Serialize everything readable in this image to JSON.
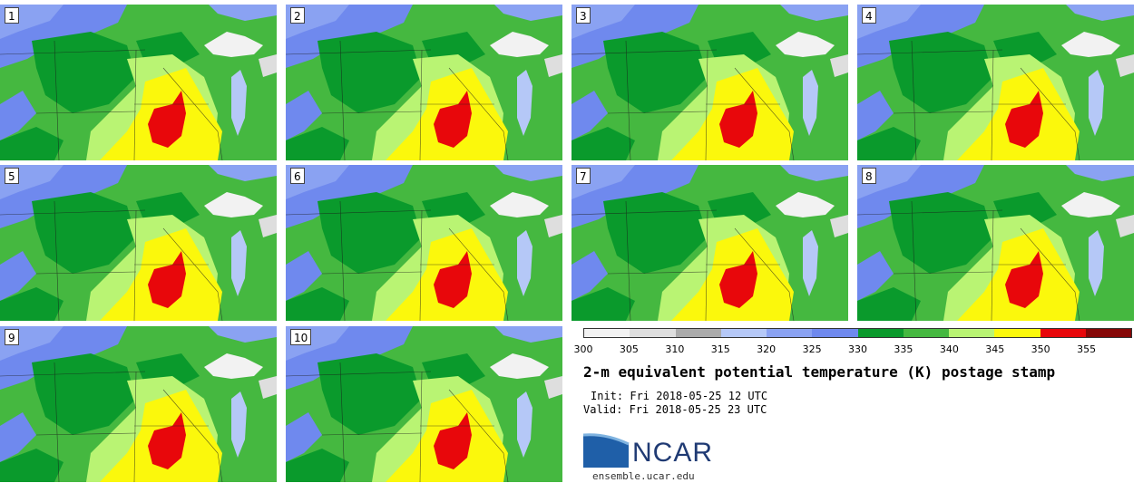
{
  "panels": [
    "1",
    "2",
    "3",
    "4",
    "5",
    "6",
    "7",
    "8",
    "9",
    "10"
  ],
  "colorbar": {
    "ticks": [
      "300",
      "305",
      "310",
      "315",
      "320",
      "325",
      "330",
      "335",
      "340",
      "345",
      "350",
      "355"
    ],
    "colors": [
      "#f2f2f2",
      "#dedede",
      "#ababab",
      "#b5c8f7",
      "#8aa2f2",
      "#6f89ee",
      "#0a9a2c",
      "#45b840",
      "#b9f473",
      "#fbf80c",
      "#e8070b",
      "#850707"
    ]
  },
  "title": "2-m equivalent potential temperature (K) postage stamp",
  "init": "Init: Fri 2018-05-25 12 UTC",
  "valid": "Valid: Fri 2018-05-25 23 UTC",
  "logo": {
    "text": "NCAR"
  },
  "site": "ensemble.ucar.edu"
}
